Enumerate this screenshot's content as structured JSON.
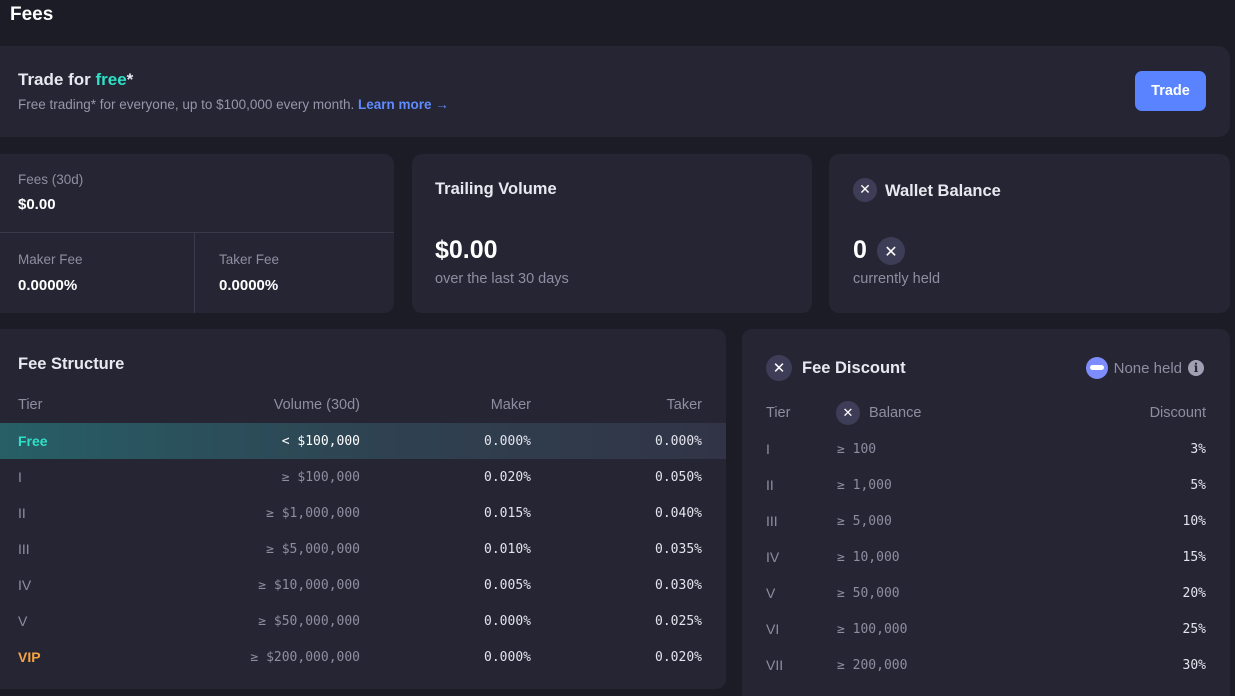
{
  "page": {
    "title": "Fees"
  },
  "promo": {
    "title_prefix": "Trade for ",
    "title_accent": "free",
    "title_suffix": "*",
    "subtitle": "Free trading* for everyone, up to $100,000 every month.",
    "link": "Learn more →",
    "button": "Trade"
  },
  "fees_card": {
    "fees_label": "Fees (30d)",
    "fees_value": "$0.00",
    "maker_label": "Maker Fee",
    "maker_value": "0.0000%",
    "taker_label": "Taker Fee",
    "taker_value": "0.0000%"
  },
  "volume_card": {
    "title": "Trailing Volume",
    "value": "$0.00",
    "sub": "over the last 30 days"
  },
  "wallet_card": {
    "title": "Wallet Balance",
    "value": "0",
    "sub": "currently held",
    "icon": "x-token-icon"
  },
  "fee_structure": {
    "title": "Fee Structure",
    "headers": {
      "tier": "Tier",
      "volume": "Volume (30d)",
      "maker": "Maker",
      "taker": "Taker"
    },
    "rows": [
      {
        "tier": "Free",
        "volume": "< $100,000",
        "maker": "0.000%",
        "taker": "0.000%"
      },
      {
        "tier": "I",
        "volume": "≥ $100,000",
        "maker": "0.020%",
        "taker": "0.050%"
      },
      {
        "tier": "II",
        "volume": "≥ $1,000,000",
        "maker": "0.015%",
        "taker": "0.040%"
      },
      {
        "tier": "III",
        "volume": "≥ $5,000,000",
        "maker": "0.010%",
        "taker": "0.035%"
      },
      {
        "tier": "IV",
        "volume": "≥ $10,000,000",
        "maker": "0.005%",
        "taker": "0.030%"
      },
      {
        "tier": "V",
        "volume": "≥ $50,000,000",
        "maker": "0.000%",
        "taker": "0.025%"
      },
      {
        "tier": "VIP",
        "volume": "≥ $200,000,000",
        "maker": "0.000%",
        "taker": "0.020%"
      }
    ]
  },
  "fee_discount": {
    "title": "Fee Discount",
    "status": "None held",
    "headers": {
      "tier": "Tier",
      "balance": "Balance",
      "discount": "Discount"
    },
    "rows": [
      {
        "tier": "I",
        "balance": "≥ 100",
        "discount": "3%"
      },
      {
        "tier": "II",
        "balance": "≥ 1,000",
        "discount": "5%"
      },
      {
        "tier": "III",
        "balance": "≥ 5,000",
        "discount": "10%"
      },
      {
        "tier": "IV",
        "balance": "≥ 10,000",
        "discount": "15%"
      },
      {
        "tier": "V",
        "balance": "≥ 50,000",
        "discount": "20%"
      },
      {
        "tier": "VI",
        "balance": "≥ 100,000",
        "discount": "25%"
      },
      {
        "tier": "VII",
        "balance": "≥ 200,000",
        "discount": "30%"
      }
    ]
  },
  "colors": {
    "background": "#1c1c27",
    "card": "#252533",
    "accent_teal": "#2fe0c6",
    "accent_blue": "#5a84ff",
    "vip_orange": "#f6a343"
  }
}
